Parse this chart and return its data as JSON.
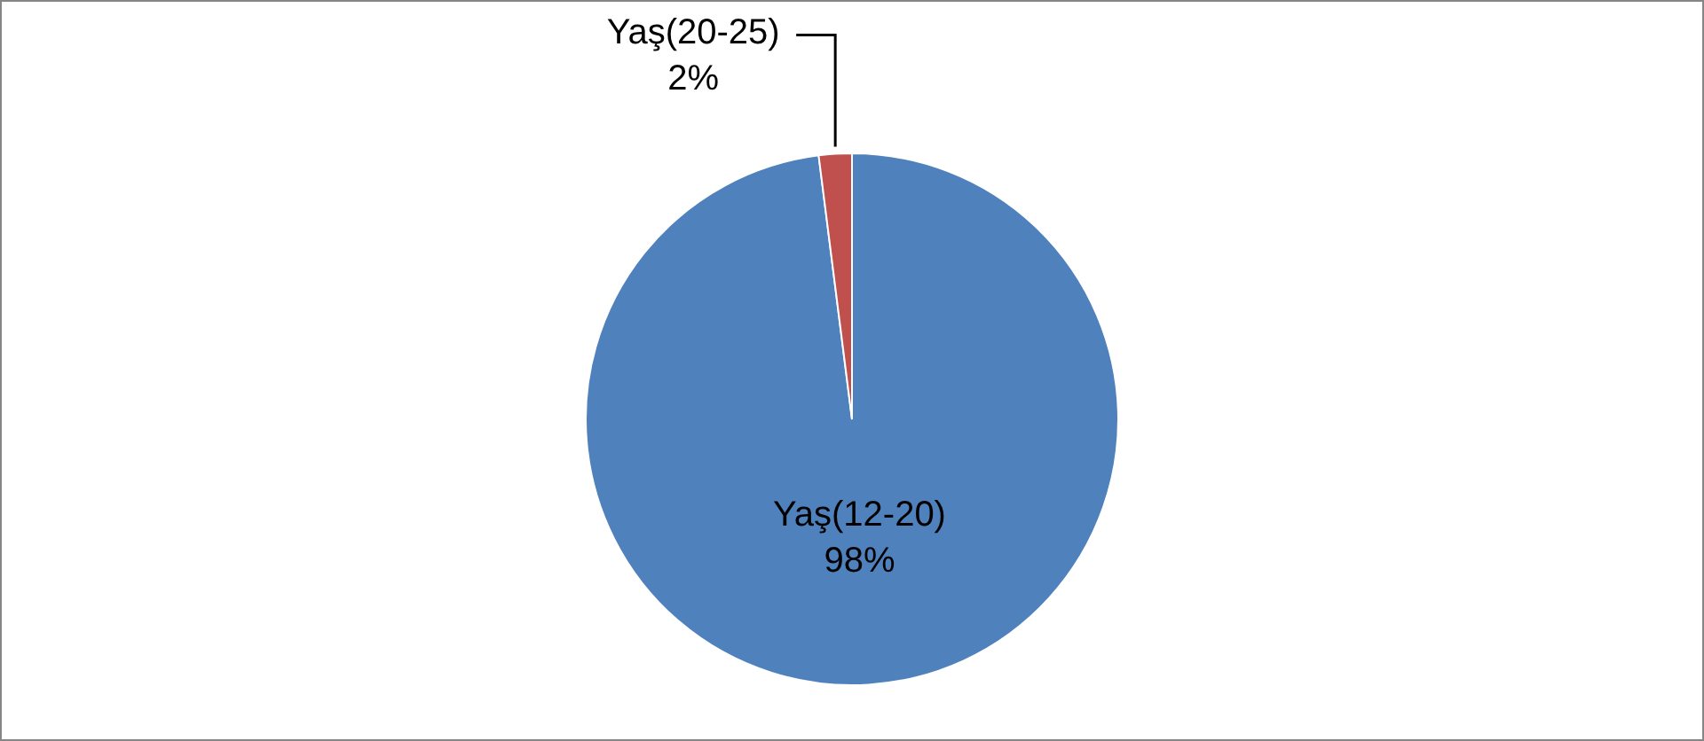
{
  "chart_data": {
    "type": "pie",
    "categories": [
      "Yaş(12-20)",
      "Yaş(20-25)"
    ],
    "values": [
      98,
      2
    ],
    "colors": [
      "#4f81bd",
      "#c0504d"
    ],
    "value_labels": [
      "98%",
      "2%"
    ],
    "legend": false
  }
}
